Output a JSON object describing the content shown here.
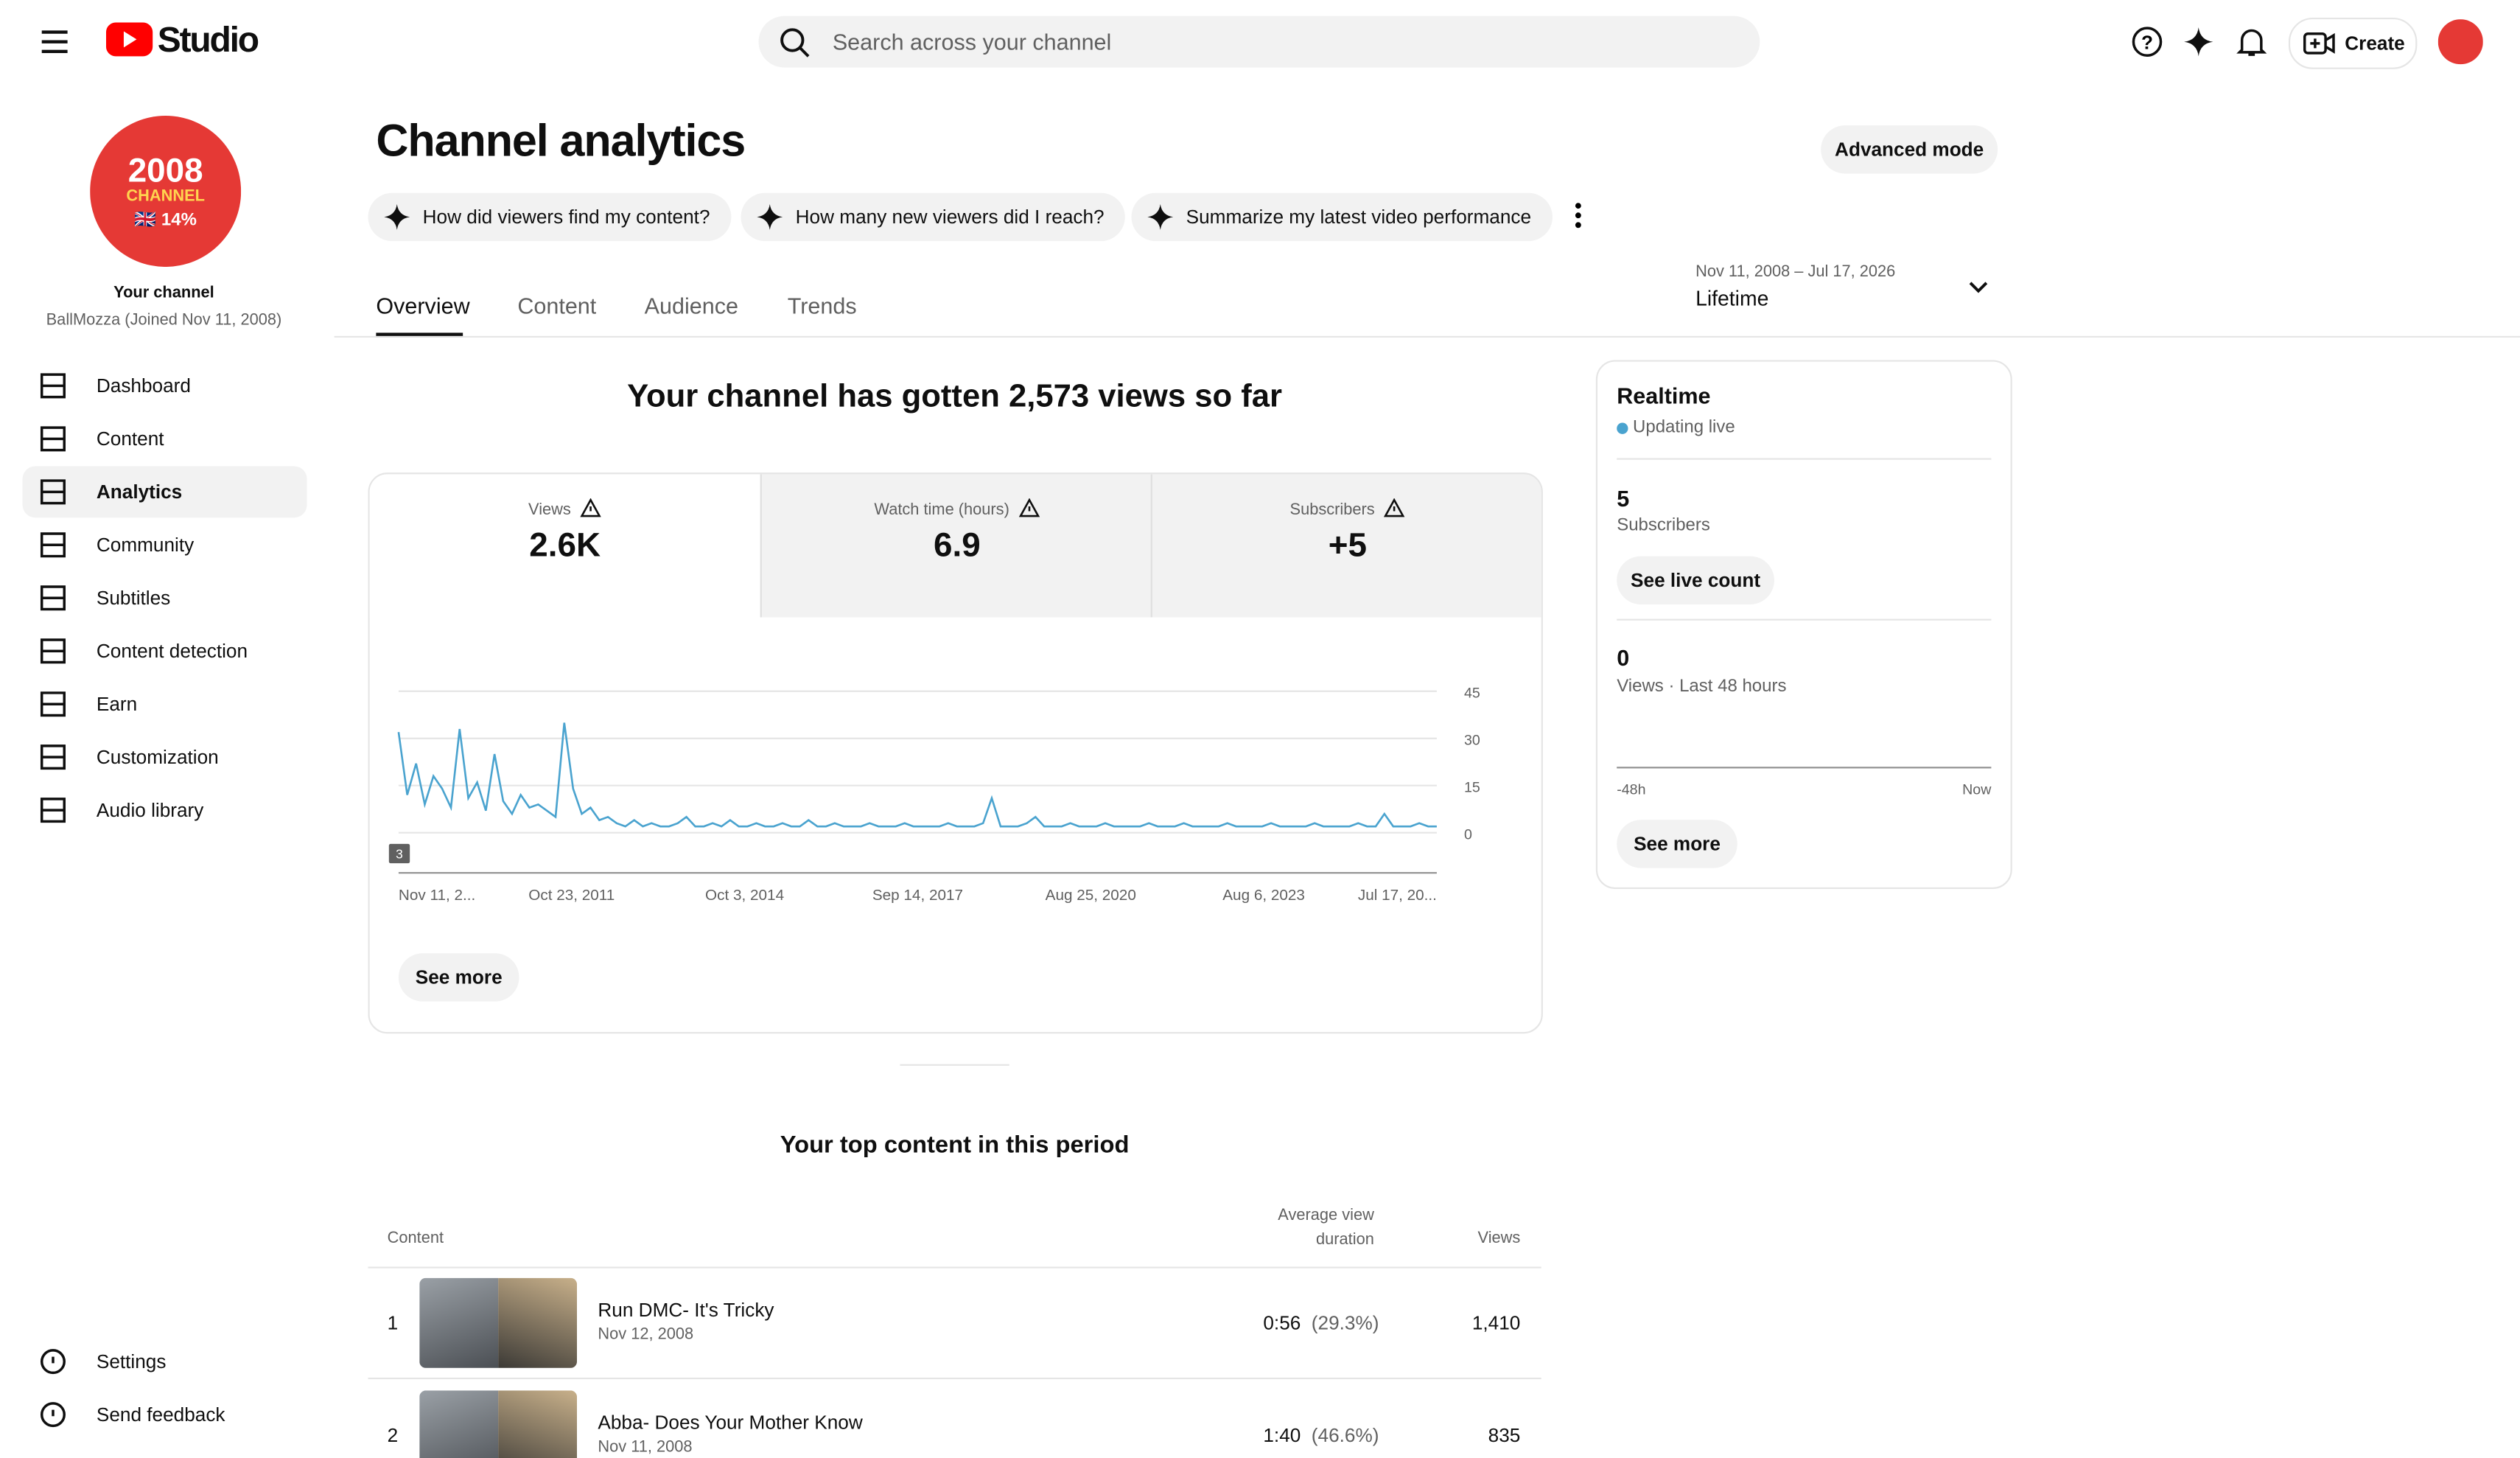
{
  "header": {
    "brand": "Studio",
    "search_placeholder": "Search across your channel",
    "create": "Create"
  },
  "sidebar": {
    "avatar": [
      "2008",
      "CHANNEL",
      "🇬🇧 14%"
    ],
    "title": "Your channel",
    "subtitle": "BallMozza (Joined Nov 11, 2008)",
    "nav": [
      "Dashboard",
      "Content",
      "Analytics",
      "Community",
      "Subtitles",
      "Content detection",
      "Earn",
      "Customization",
      "Audio library"
    ],
    "footer": [
      "Settings",
      "Send feedback"
    ]
  },
  "main": {
    "title": "Channel analytics",
    "advanced": "Advanced mode",
    "prompts": [
      "How did viewers find my content?",
      "How many new viewers did I reach?",
      "Summarize my latest video performance"
    ],
    "tabs": [
      "Overview",
      "Content",
      "Audience",
      "Trends"
    ],
    "date_range": {
      "range": "Nov 11, 2008 – Jul 17, 2026",
      "label": "Lifetime"
    },
    "headline": "Your channel has gotten 2,573 views so far",
    "metrics": [
      {
        "label": "Views",
        "value": "2.6K"
      },
      {
        "label": "Watch time (hours)",
        "value": "6.9"
      },
      {
        "label": "Subscribers",
        "value": "+5"
      }
    ],
    "chart": {
      "type": "line",
      "color": "#4aa3cf",
      "ylim": [
        0,
        45
      ],
      "yticks": [
        0,
        15,
        30,
        45
      ],
      "marker": "3",
      "x_labels": [
        "Nov 11, 2...",
        "Oct 23, 2011",
        "Oct 3, 2014",
        "Sep 14, 2017",
        "Aug 25, 2020",
        "Aug 6, 2023",
        "Jul 17, 20..."
      ],
      "values": [
        32,
        12,
        22,
        9,
        18,
        14,
        8,
        33,
        11,
        16,
        7,
        25,
        10,
        6,
        12,
        8,
        9,
        7,
        5,
        35,
        14,
        6,
        8,
        4,
        5,
        3,
        2,
        4,
        2,
        3,
        2,
        2,
        3,
        5,
        2,
        2,
        3,
        2,
        4,
        2,
        2,
        3,
        2,
        2,
        3,
        2,
        2,
        4,
        2,
        2,
        3,
        2,
        2,
        2,
        3,
        2,
        2,
        2,
        3,
        2,
        2,
        2,
        2,
        3,
        2,
        2,
        2,
        3,
        11,
        2,
        2,
        2,
        3,
        5,
        2,
        2,
        2,
        3,
        2,
        2,
        2,
        3,
        2,
        2,
        2,
        2,
        3,
        2,
        2,
        2,
        3,
        2,
        2,
        2,
        2,
        3,
        2,
        2,
        2,
        2,
        3,
        2,
        2,
        2,
        2,
        3,
        2,
        2,
        2,
        2,
        3,
        2,
        2,
        6,
        2,
        2,
        2,
        3,
        2,
        2
      ]
    },
    "see_more": "See more",
    "top_content": {
      "title": "Your top content in this period",
      "columns": [
        "Content",
        "Average view duration",
        "Views"
      ],
      "rows": [
        {
          "rank": "1",
          "title": "Run DMC- It's Tricky",
          "date": "Nov 12, 2008",
          "duration": "0:56",
          "percent": "(29.3%)",
          "views": "1,410"
        },
        {
          "rank": "2",
          "title": "Abba- Does Your Mother Know",
          "date": "Nov 11, 2008",
          "duration": "1:40",
          "percent": "(46.6%)",
          "views": "835"
        }
      ]
    }
  },
  "realtime": {
    "title": "Realtime",
    "status": "Updating live",
    "subscribers": "5",
    "subscribers_label": "Subscribers",
    "live_button": "See live count",
    "views": "0",
    "views_label": "Views · Last 48 hours",
    "axis": [
      "-48h",
      "Now"
    ],
    "see_more": "See more"
  }
}
